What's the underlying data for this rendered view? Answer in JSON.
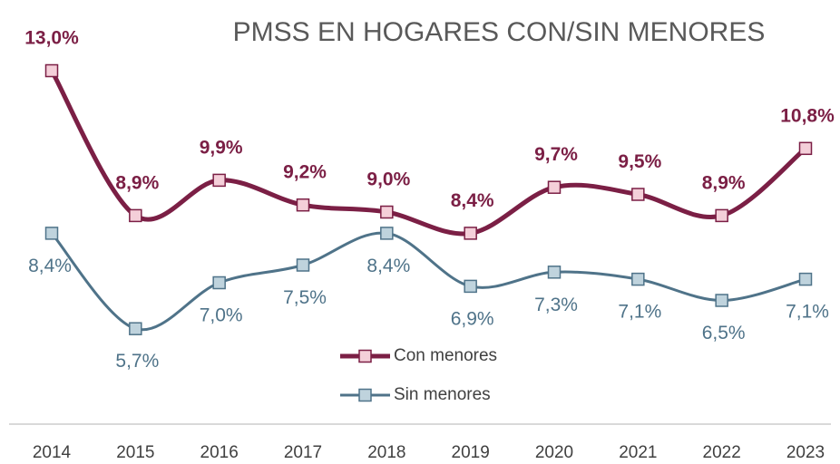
{
  "chart_data": {
    "type": "line",
    "title": "PMSS EN HOGARES CON/SIN MENORES",
    "categories": [
      "2014",
      "2015",
      "2016",
      "2017",
      "2018",
      "2019",
      "2020",
      "2021",
      "2022",
      "2023"
    ],
    "ylim": [
      3,
      15
    ],
    "series": [
      {
        "name": "Con menores",
        "color": "#7b1f45",
        "marker_fill": "#f4cfd9",
        "values": [
          13.0,
          8.9,
          9.9,
          9.2,
          9.0,
          8.4,
          9.7,
          9.5,
          8.9,
          10.8
        ],
        "value_labels": [
          "13,0%",
          "8,9%",
          "9,9%",
          "9,2%",
          "9,0%",
          "8,4%",
          "9,7%",
          "9,5%",
          "8,9%",
          "10,8%"
        ]
      },
      {
        "name": "Sin menores",
        "color": "#4f7389",
        "marker_fill": "#bfd3dd",
        "values": [
          8.4,
          5.7,
          7.0,
          7.5,
          8.4,
          6.9,
          7.3,
          7.1,
          6.5,
          7.1
        ],
        "value_labels": [
          "8,4%",
          "5,7%",
          "7,0%",
          "7,5%",
          "8,4%",
          "6,9%",
          "7,3%",
          "7,1%",
          "6,5%",
          "7,1%"
        ]
      }
    ]
  }
}
